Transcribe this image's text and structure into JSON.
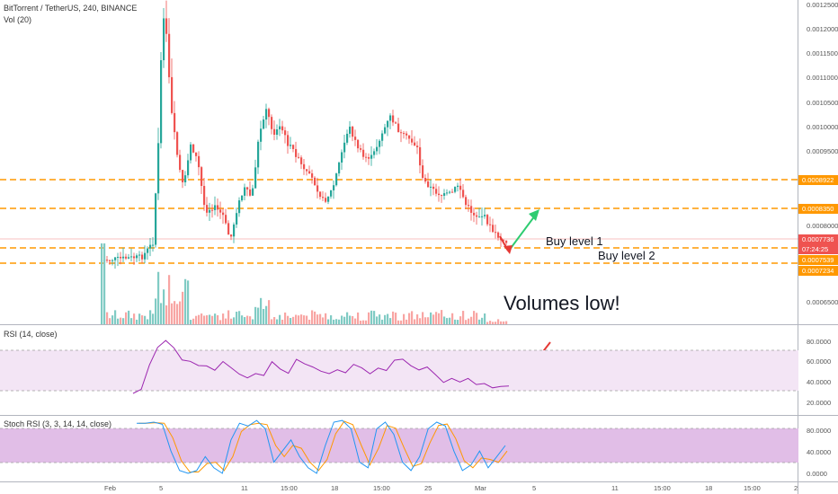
{
  "header": {
    "title": "BitTorrent / TetherUS, 240, BINANCE",
    "volume_label": "Vol (20)"
  },
  "colors": {
    "up": "#26a69a",
    "down": "#ef5350",
    "level_line": "#ff9800",
    "rsi_line": "#9c27b0",
    "rsi_band": "#f3e5f5",
    "stoch_band": "#e1bee7",
    "stoch_k": "#2196f3",
    "stoch_d": "#ff9800",
    "arrow_up": "#2ecc71",
    "arrow_down": "#e53935",
    "price_tag_current": "#ef5350",
    "price_tag_timer": "#ef5350",
    "price_tag_level": "#ff9800"
  },
  "price_axis": {
    "ticks": [
      "0.0012500",
      "0.0012000",
      "0.0011500",
      "0.0011000",
      "0.0010500",
      "0.0010000",
      "0.0009500",
      "0.0008000",
      "0.0006500"
    ]
  },
  "price_tags": {
    "level_0922": "0.0008922",
    "level_0350": "0.0008350",
    "current": "0.0007736",
    "timer": "07:24:25",
    "level_7539": "0.0007539",
    "level_7234": "0.0007234"
  },
  "annotations": {
    "buy_level_1": "Buy level 1",
    "buy_level_2": "Buy level 2",
    "volumes_low": "Volumes low!"
  },
  "rsi": {
    "label": "RSI (14, close)",
    "ticks": [
      "80.0000",
      "60.0000",
      "40.0000",
      "20.0000"
    ]
  },
  "stoch": {
    "label": "Stoch RSI (3, 3, 14, 14, close)",
    "ticks": [
      "80.0000",
      "40.0000",
      "0.0000"
    ]
  },
  "time_axis": {
    "labels": [
      "Feb",
      "5",
      "11",
      "15:00",
      "18",
      "15:00",
      "25",
      "Mar",
      "5",
      "11",
      "15:00",
      "18",
      "15:00",
      "2"
    ]
  },
  "chart_data": {
    "type": "line",
    "series": [
      {
        "name": "RSI (14, close)",
        "values": [
          20,
          25,
          58,
          82,
          88,
          78,
          66,
          60,
          58,
          54,
          50,
          60,
          54,
          46,
          40,
          48,
          42,
          60,
          52,
          46,
          66,
          60,
          56,
          50,
          44,
          52,
          46,
          60,
          54,
          48,
          54,
          52,
          62,
          66,
          54,
          50,
          55,
          44,
          36,
          40,
          34,
          38,
          30,
          32,
          28,
          30,
          31
        ]
      },
      {
        "name": "Stoch RSI (3, 3, 14, 14, close)",
        "values": [
          90,
          90,
          92,
          88,
          40,
          5,
          0,
          5,
          30,
          10,
          0,
          60,
          90,
          85,
          95,
          80,
          20,
          40,
          60,
          30,
          10,
          0,
          50,
          92,
          95,
          80,
          20,
          10,
          80,
          92,
          70,
          20,
          5,
          30,
          80,
          92,
          85,
          40,
          5,
          15,
          40,
          10,
          30,
          50
        ]
      }
    ],
    "levels": [
      0.0008922,
      0.000835,
      0.0007736,
      0.0007539,
      0.0007234
    ]
  }
}
